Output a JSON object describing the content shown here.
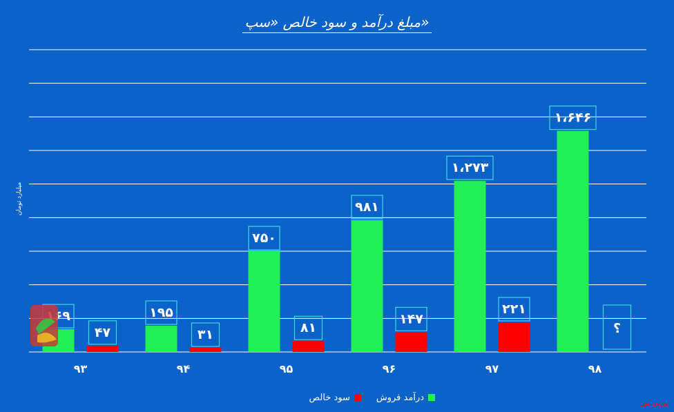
{
  "chart_data": {
    "type": "bar",
    "title": "مبلغ درآمد و سود خالص «سپ»",
    "ylabel": "میلیارد تومان",
    "categories": [
      "۹۳",
      "۹۴",
      "۹۵",
      "۹۶",
      "۹۷",
      "۹۸"
    ],
    "ylim": [
      0,
      2250
    ],
    "grid": true,
    "legend_position": "bottom",
    "series": [
      {
        "name": "درآمد فروش",
        "color": "#22ee55",
        "values": [
          169,
          195,
          750,
          981,
          1273,
          1646
        ],
        "labels": [
          "۱۶۹",
          "۱۹۵",
          "۷۵۰",
          "۹۸۱",
          "۱،۲۷۳",
          "۱،۶۴۶"
        ]
      },
      {
        "name": "سود خالص",
        "color": "#ff0000",
        "values": [
          47,
          31,
          81,
          147,
          221,
          null
        ],
        "labels": [
          "۴۷",
          "۳۱",
          "۸۱",
          "۱۴۷",
          "۲۲۱",
          "؟"
        ]
      }
    ]
  },
  "colors": {
    "background": "#0b63c9",
    "label_border": "#3fd6e8",
    "gridline": "#ffffff"
  },
  "branding": {
    "watermark_icon": "bourse-news-logo-icon",
    "watermark_text": "بورس نیوز",
    "footer": "بورس نیوز"
  }
}
